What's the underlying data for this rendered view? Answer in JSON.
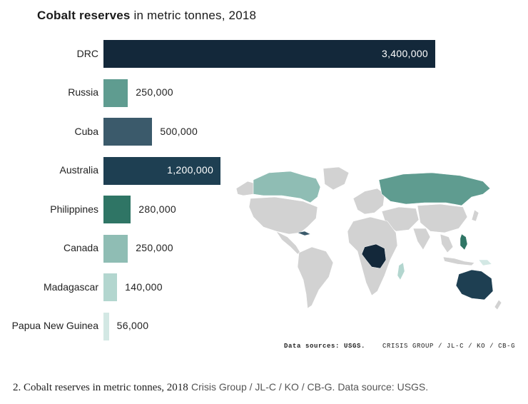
{
  "chart_data": {
    "type": "bar",
    "orientation": "horizontal",
    "title_bold": "Cobalt reserves",
    "title_rest": " in metric tonnes, 2018",
    "categories": [
      "DRC",
      "Russia",
      "Cuba",
      "Australia",
      "Philippines",
      "Canada",
      "Madagascar",
      "Papua New Guinea"
    ],
    "values": [
      3400000,
      250000,
      500000,
      1200000,
      280000,
      250000,
      140000,
      56000
    ],
    "value_labels": [
      "3,400,000",
      "250,000",
      "500,000",
      "1,200,000",
      "280,000",
      "250,000",
      "140,000",
      "56,000"
    ],
    "colors": [
      "#13283a",
      "#5f9c90",
      "#3b5a6b",
      "#1e3f52",
      "#2f7565",
      "#8fbdb4",
      "#b3d6cf",
      "#d3e8e4"
    ],
    "xlim": [
      0,
      3400000
    ],
    "grid": false,
    "legend": "none"
  },
  "map": {
    "highlight_countries": [
      "DRC",
      "Russia",
      "Cuba",
      "Australia",
      "Philippines",
      "Canada",
      "Madagascar",
      "Papua New Guinea"
    ],
    "land_color": "#d2d2d2",
    "border_color": "#ffffff"
  },
  "sources": {
    "label": "Data sources: USGS.",
    "credit": "CRISIS GROUP / JL-C / KO / CB-G"
  },
  "caption": {
    "lead": "2. Cobalt reserves in metric tonnes, 2018",
    "credit": "Crisis Group / JL-C / KO / CB-G. Data source: USGS."
  }
}
